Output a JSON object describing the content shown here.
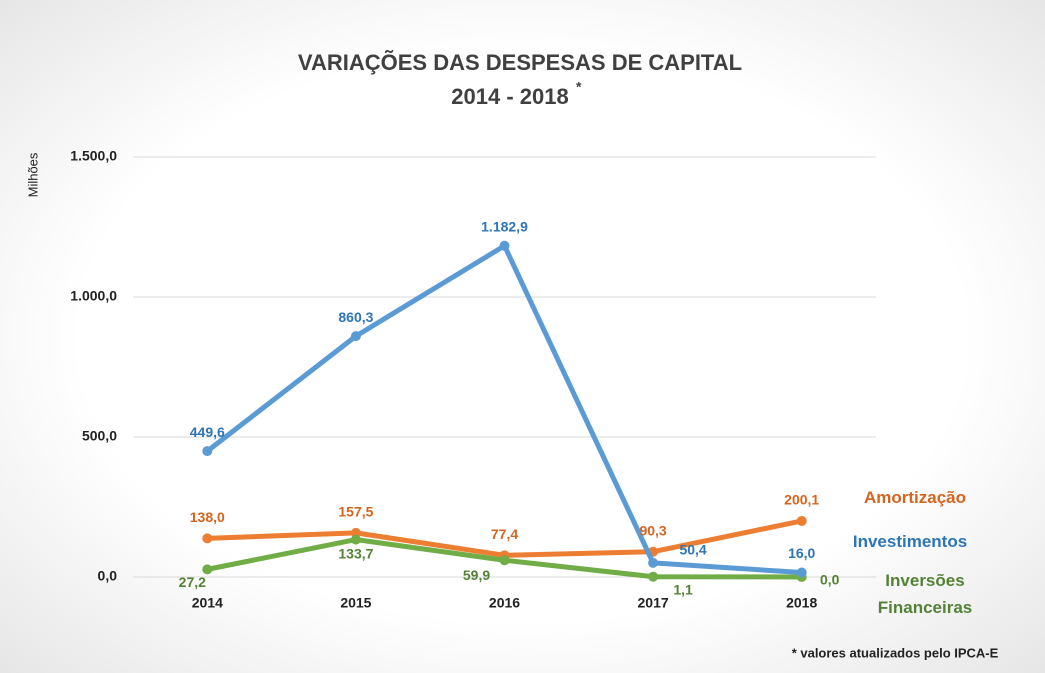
{
  "chart_data": {
    "type": "line",
    "title": "VARIAÇÕES DAS DESPESAS DE CAPITAL",
    "subtitle": "2014 - 2018",
    "subtitle_mark": "*",
    "y_label": "Milhões",
    "footnote": "* valores atualizados pelo IPCA-E",
    "categories": [
      "2014",
      "2015",
      "2016",
      "2017",
      "2018"
    ],
    "ylim": [
      0,
      1500
    ],
    "yticks": [
      {
        "value": 0,
        "label": "0,0"
      },
      {
        "value": 500,
        "label": "500,0"
      },
      {
        "value": 1000,
        "label": "1.000,0"
      },
      {
        "value": 1500,
        "label": "1.500,0"
      }
    ],
    "grid": true,
    "series": [
      {
        "name": "Investimentos",
        "color": "#5b9bd5",
        "label_color": "#2e75b6",
        "values": [
          449.6,
          860.3,
          1182.9,
          50.4,
          16.0
        ],
        "value_labels": [
          "449,6",
          "860,3",
          "1.182,9",
          "50,4",
          "16,0"
        ]
      },
      {
        "name": "Amortização",
        "color": "#ed7d31",
        "label_color": "#d4651f",
        "values": [
          138.0,
          157.5,
          77.4,
          90.3,
          200.1
        ],
        "value_labels": [
          "138,0",
          "157,5",
          "77,4",
          "90,3",
          "200,1"
        ]
      },
      {
        "name": "Inversões Financeiras",
        "color": "#70ad47",
        "label_color": "#548235",
        "values": [
          27.2,
          133.7,
          59.9,
          1.1,
          0.0
        ],
        "value_labels": [
          "27,2",
          "133,7",
          "59,9",
          "1,1",
          "0,0"
        ]
      }
    ]
  }
}
